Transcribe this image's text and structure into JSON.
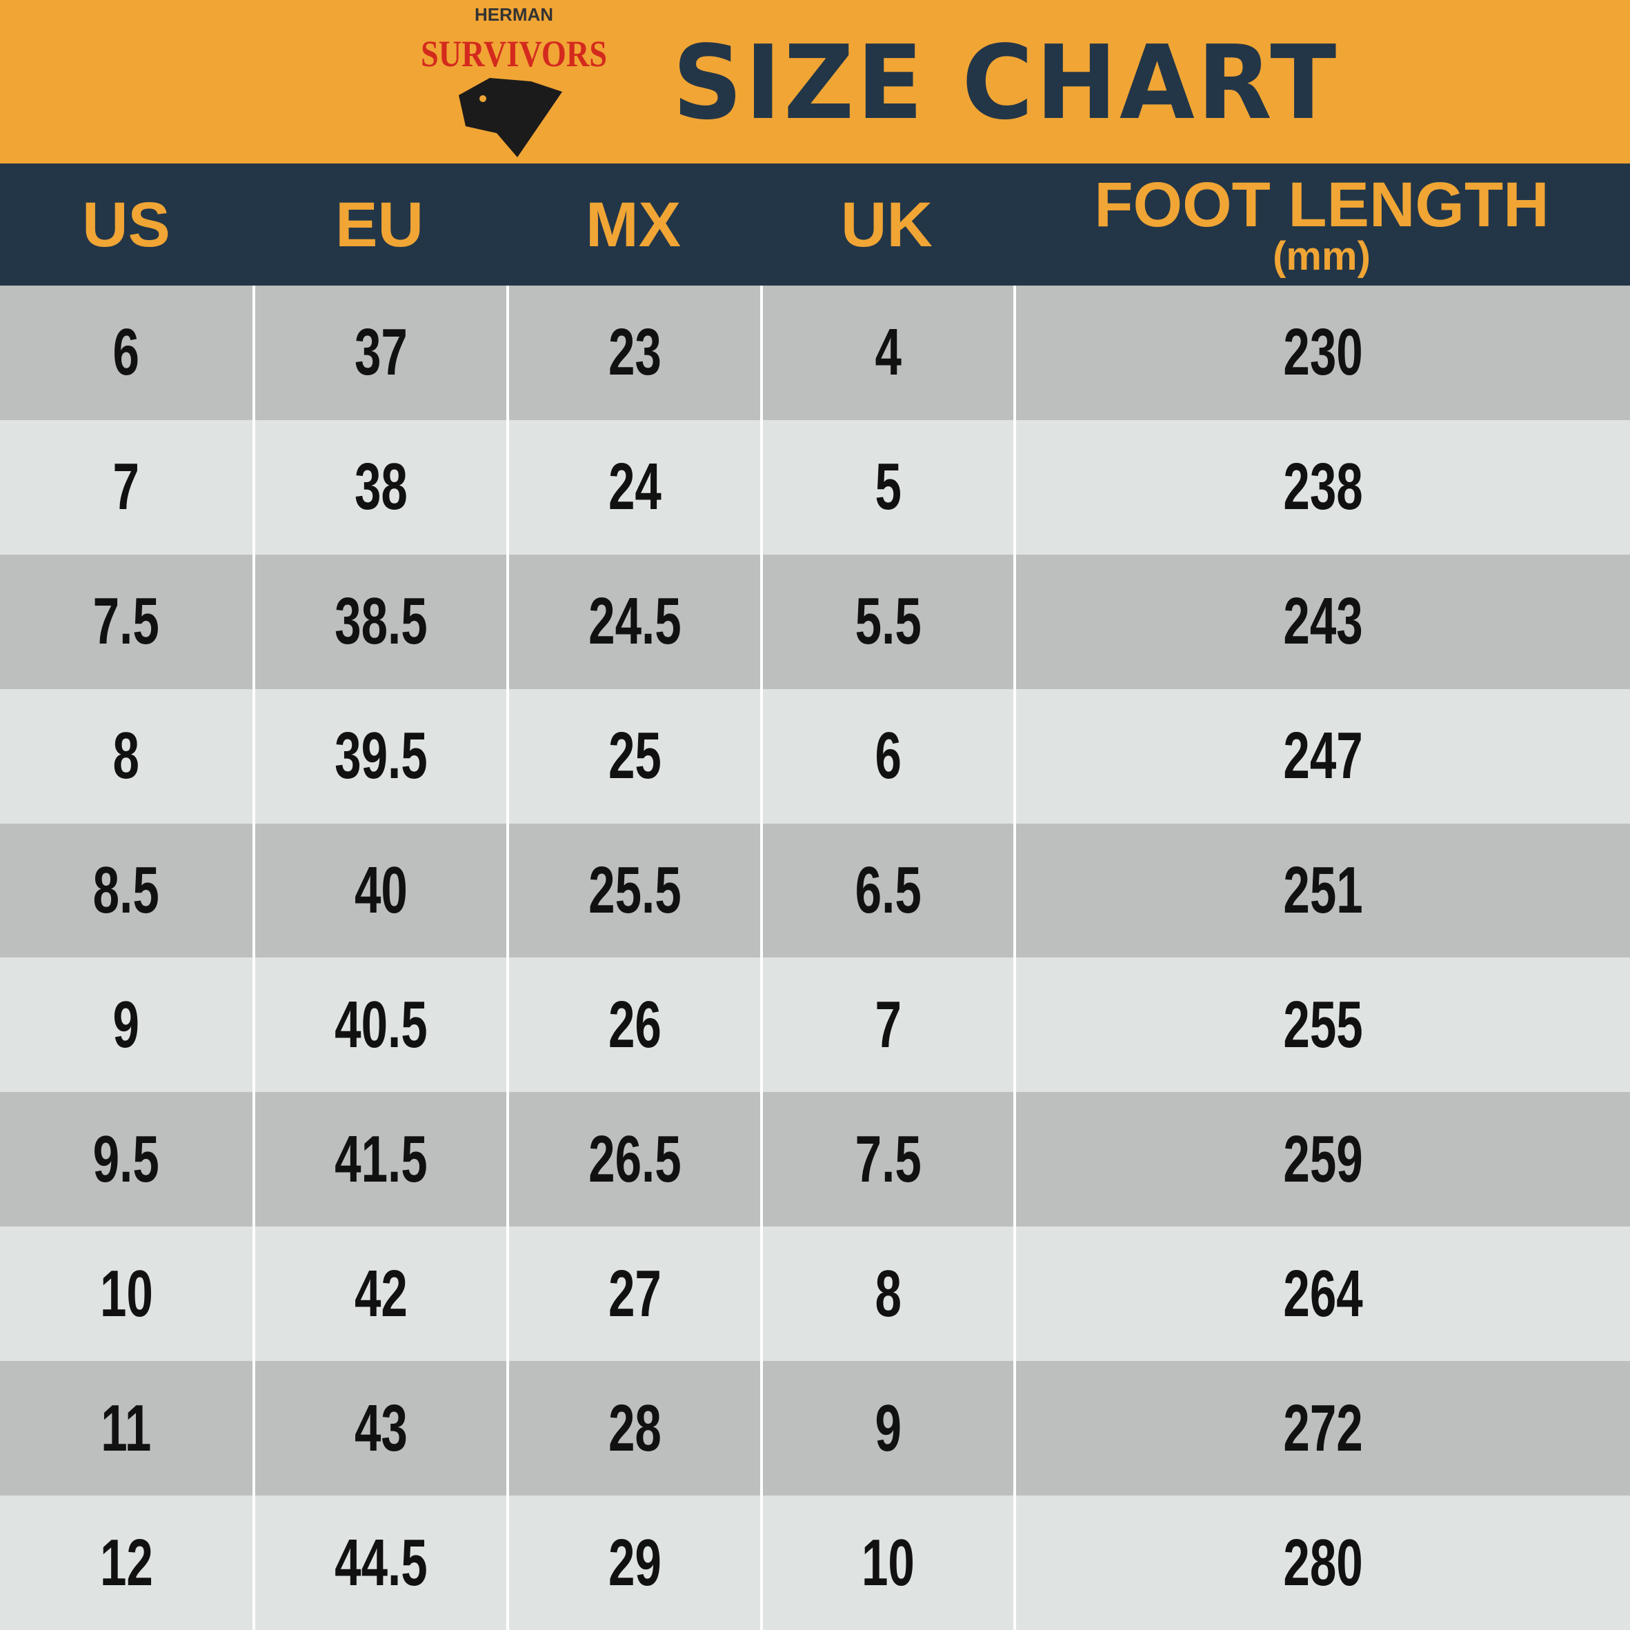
{
  "header": {
    "brand_top": "HERMAN",
    "brand": "SURVIVORS",
    "title": "SIZE CHART"
  },
  "table": {
    "columns": [
      "US",
      "EU",
      "MX",
      "UK",
      "FOOT LENGTH"
    ],
    "unit": "(mm)",
    "rows": [
      [
        "6",
        "37",
        "23",
        "4",
        "230"
      ],
      [
        "7",
        "38",
        "24",
        "5",
        "238"
      ],
      [
        "7.5",
        "38.5",
        "24.5",
        "5.5",
        "243"
      ],
      [
        "8",
        "39.5",
        "25",
        "6",
        "247"
      ],
      [
        "8.5",
        "40",
        "25.5",
        "6.5",
        "251"
      ],
      [
        "9",
        "40.5",
        "26",
        "7",
        "255"
      ],
      [
        "9.5",
        "41.5",
        "26.5",
        "7.5",
        "259"
      ],
      [
        "10",
        "42",
        "27",
        "8",
        "264"
      ],
      [
        "11",
        "43",
        "28",
        "9",
        "272"
      ],
      [
        "12",
        "44.5",
        "29",
        "10",
        "280"
      ]
    ]
  }
}
